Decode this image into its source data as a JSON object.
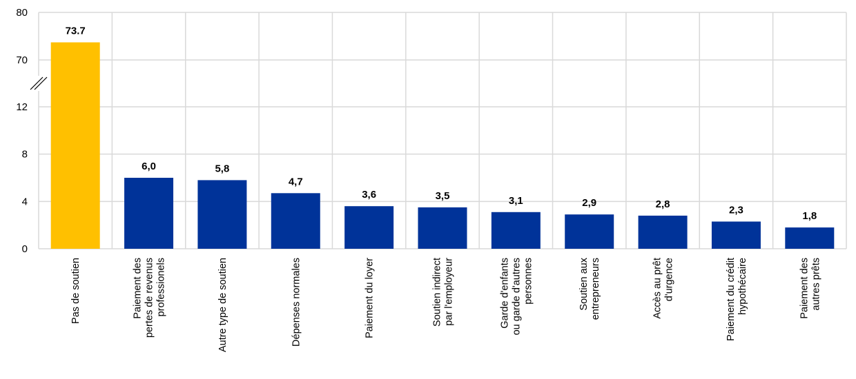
{
  "chart_data": {
    "type": "bar",
    "categories": [
      "Pas de soutien",
      "Paiement des pertes de revenus professionels",
      "Autre type de soutien",
      "Dépenses normales",
      "Paiement du loyer",
      "Soutien indirect par l'employeur",
      "Garde d'enfants ou garde d'autres personnes",
      "Soutien aux entrepreneurs",
      "Accès au prêt d'urgence",
      "Paiement du crédit hypothécaire",
      "Paiement des autres prêts"
    ],
    "category_lines": [
      [
        "Pas de soutien"
      ],
      [
        "Paiement des",
        "pertes de revenus",
        "professionels"
      ],
      [
        "Autre type de soutien"
      ],
      [
        "Dépenses normales"
      ],
      [
        "Paiement du loyer"
      ],
      [
        "Soutien indirect",
        "par l'employeur"
      ],
      [
        "Garde d'enfants",
        "ou garde d'autres",
        "personnes"
      ],
      [
        "Soutien aux",
        "entrepreneurs"
      ],
      [
        "Accès au prêt",
        "d'urgence"
      ],
      [
        "Paiement du crédit",
        "hypothécaire"
      ],
      [
        "Paiement des",
        "autres prêts"
      ]
    ],
    "values": [
      73.7,
      6.0,
      5.8,
      4.7,
      3.6,
      3.5,
      3.1,
      2.9,
      2.8,
      2.3,
      1.8
    ],
    "value_labels": [
      "73.7",
      "6,0",
      "5,8",
      "4,7",
      "3,6",
      "3,5",
      "3,1",
      "2,9",
      "2,8",
      "2,3",
      "1,8"
    ],
    "highlight_index": 0,
    "colors": {
      "highlight": "#FFC000",
      "bar": "#003399",
      "grid": "#d9d9d9"
    },
    "y_axis": {
      "broken": true,
      "lower_range": [
        0,
        12
      ],
      "upper_range": [
        70,
        80
      ],
      "ticks": [
        0,
        4,
        8,
        12,
        70,
        80
      ],
      "tick_labels": [
        "0",
        "4",
        "8",
        "12",
        "70",
        "80"
      ]
    },
    "title": "",
    "xlabel": "",
    "ylabel": "",
    "grid": true,
    "legend": "none"
  }
}
